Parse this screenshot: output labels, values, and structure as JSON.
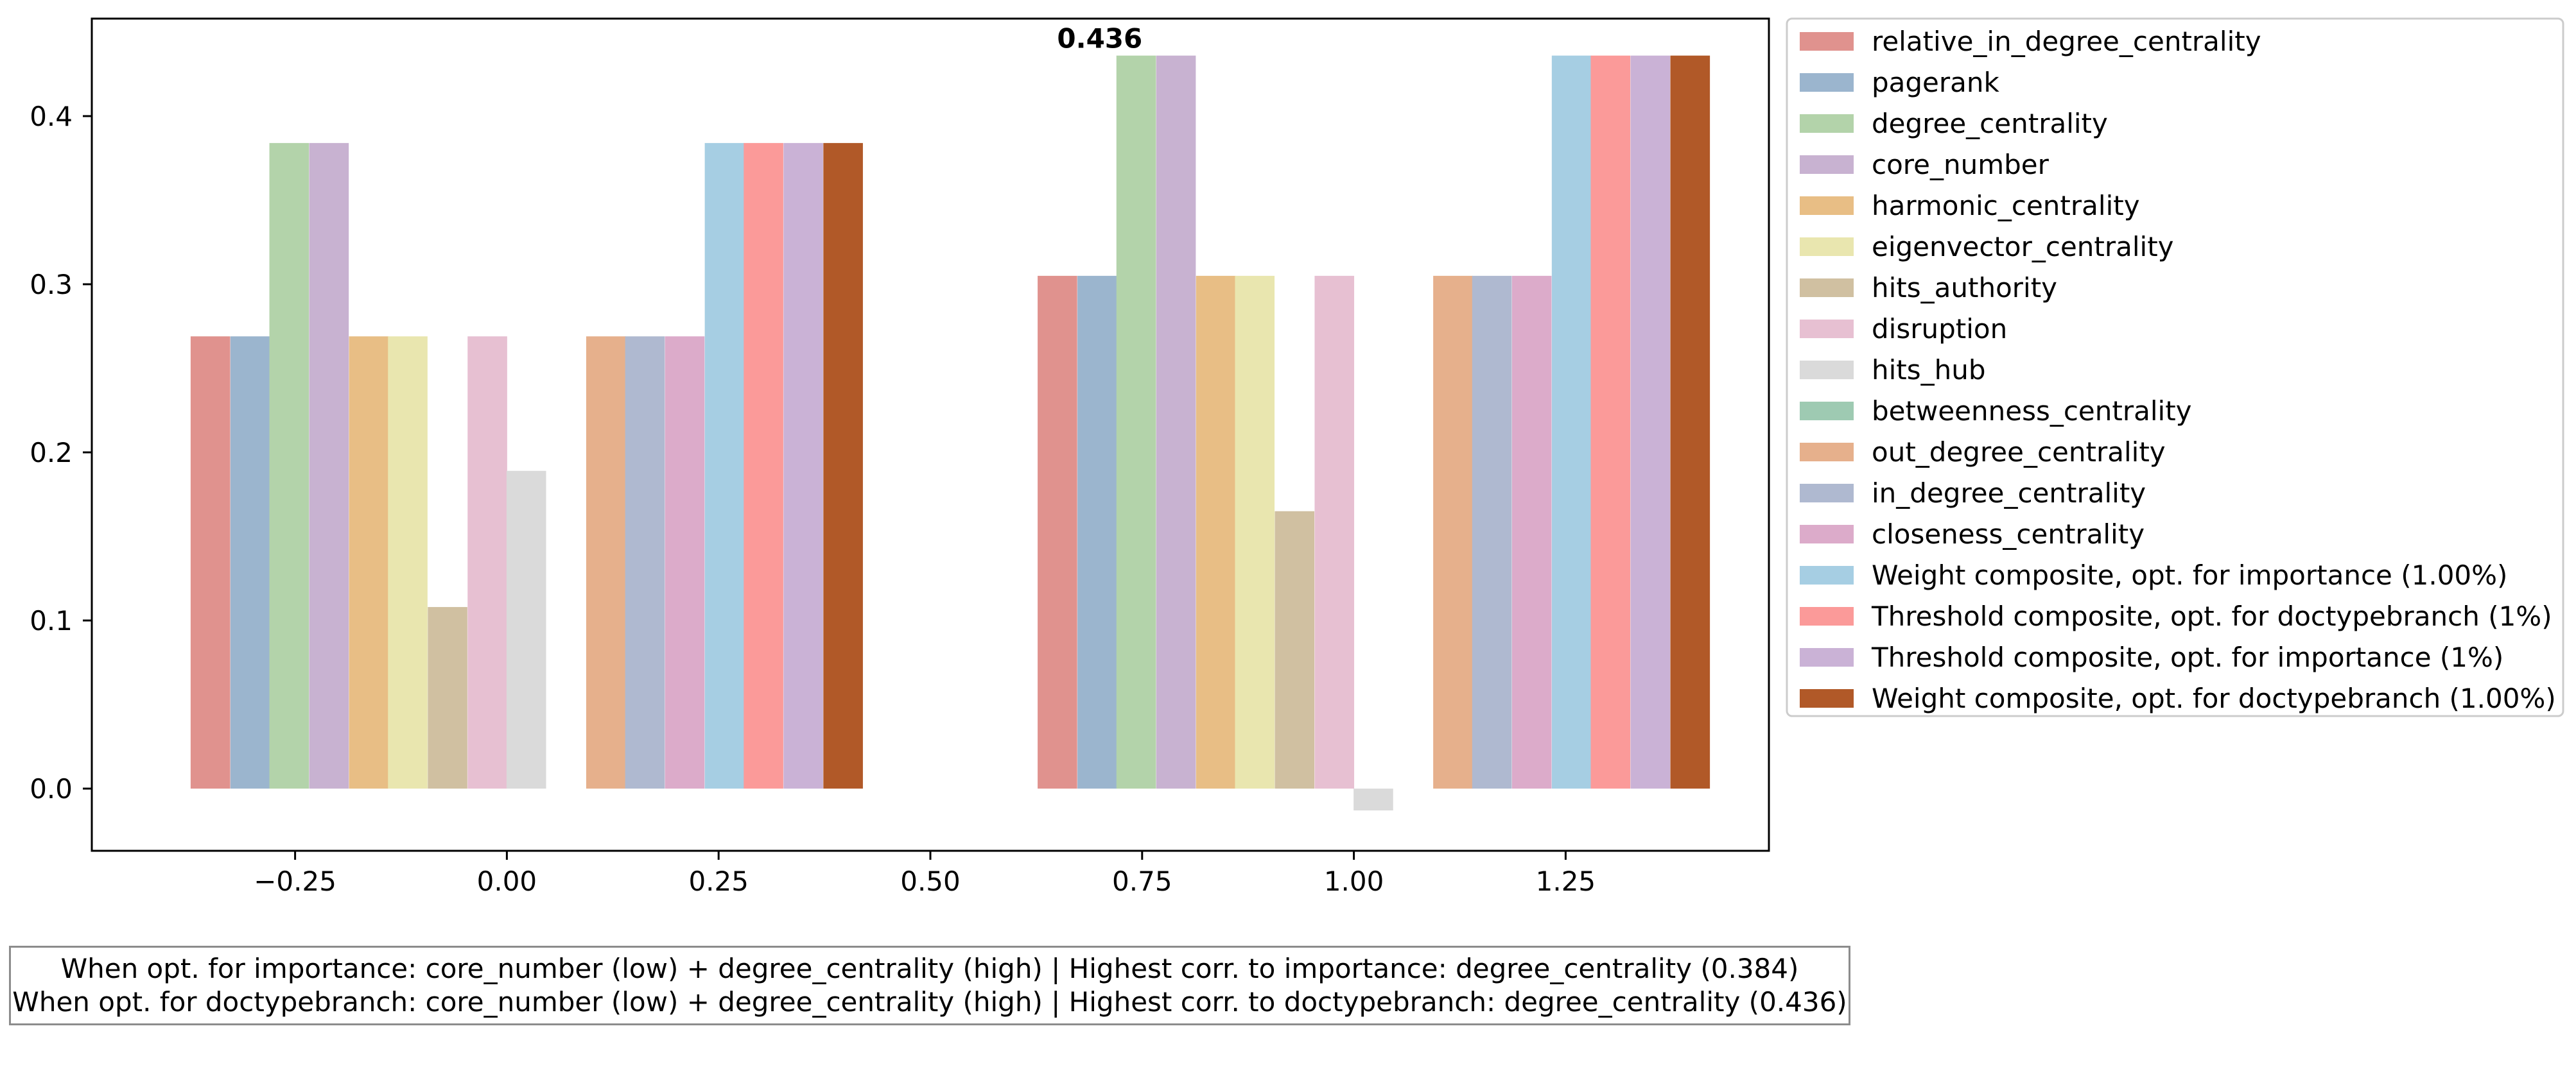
{
  "chart_data": {
    "type": "bar",
    "x_ticks": [
      "−0.25",
      "0.00",
      "0.25",
      "0.50",
      "0.75",
      "1.00",
      "1.25"
    ],
    "x_tick_values": [
      -0.25,
      0,
      0.25,
      0.5,
      0.75,
      1.0,
      1.25
    ],
    "y_ticks": [
      "0.0",
      "0.1",
      "0.2",
      "0.3",
      "0.4"
    ],
    "y_tick_values": [
      0,
      0.1,
      0.2,
      0.3,
      0.4
    ],
    "xlim": [
      -0.49,
      1.49
    ],
    "ylim": [
      -0.037,
      0.458
    ],
    "bar_width": 0.0467,
    "grid": false,
    "legend_position": "outside-right",
    "annotation": {
      "text": "0.436",
      "x": 0.7,
      "y": 0.436
    },
    "series": [
      {
        "name": "relative_in_degree_centrality",
        "color": "#E0928E",
        "points": [
          {
            "x": -0.35,
            "y": 0.269
          },
          {
            "x": 0.65,
            "y": 0.305
          }
        ]
      },
      {
        "name": "pagerank",
        "color": "#9BB5CE",
        "points": [
          {
            "x": -0.303,
            "y": 0.269
          },
          {
            "x": 0.697,
            "y": 0.305
          }
        ]
      },
      {
        "name": "degree_centrality",
        "color": "#B3D3AA",
        "points": [
          {
            "x": -0.257,
            "y": 0.384
          },
          {
            "x": 0.743,
            "y": 0.436
          }
        ]
      },
      {
        "name": "core_number",
        "color": "#C8B2D1",
        "points": [
          {
            "x": -0.21,
            "y": 0.384
          },
          {
            "x": 0.79,
            "y": 0.436
          }
        ]
      },
      {
        "name": "harmonic_centrality",
        "color": "#E8BE85",
        "points": [
          {
            "x": -0.163,
            "y": 0.269
          },
          {
            "x": 0.837,
            "y": 0.305
          }
        ]
      },
      {
        "name": "eigenvector_centrality",
        "color": "#E9E6AF",
        "points": [
          {
            "x": -0.117,
            "y": 0.269
          },
          {
            "x": 0.883,
            "y": 0.305
          }
        ]
      },
      {
        "name": "hits_authority",
        "color": "#D0C0A1",
        "points": [
          {
            "x": -0.07,
            "y": 0.108
          },
          {
            "x": 0.93,
            "y": 0.165
          }
        ]
      },
      {
        "name": "disruption",
        "color": "#E7C0D2",
        "points": [
          {
            "x": -0.023,
            "y": 0.269
          },
          {
            "x": 0.977,
            "y": 0.305
          }
        ]
      },
      {
        "name": "hits_hub",
        "color": "#DADADA",
        "points": [
          {
            "x": 0.023,
            "y": 0.189
          },
          {
            "x": 1.023,
            "y": -0.013
          }
        ]
      },
      {
        "name": "betweenness_centrality",
        "color": "#9ECAB2",
        "points": []
      },
      {
        "name": "out_degree_centrality",
        "color": "#E6B08C",
        "points": [
          {
            "x": 0.117,
            "y": 0.269
          },
          {
            "x": 1.117,
            "y": 0.305
          }
        ]
      },
      {
        "name": "in_degree_centrality",
        "color": "#AFB9D0",
        "points": [
          {
            "x": 0.163,
            "y": 0.269
          },
          {
            "x": 1.163,
            "y": 0.305
          }
        ]
      },
      {
        "name": "closeness_centrality",
        "color": "#DCABCA",
        "points": [
          {
            "x": 0.21,
            "y": 0.269
          },
          {
            "x": 1.21,
            "y": 0.305
          }
        ]
      },
      {
        "name": "Weight composite, opt. for importance (1.00%)",
        "color": "#A6CEE3",
        "points": [
          {
            "x": 0.257,
            "y": 0.384
          },
          {
            "x": 1.257,
            "y": 0.436
          }
        ]
      },
      {
        "name": "Threshold composite, opt. for doctypebranch (1%)",
        "color": "#FB9A99",
        "points": [
          {
            "x": 0.303,
            "y": 0.384
          },
          {
            "x": 1.303,
            "y": 0.436
          }
        ]
      },
      {
        "name": "Threshold composite, opt. for importance (1%)",
        "color": "#CAB2D6",
        "points": [
          {
            "x": 0.35,
            "y": 0.384
          },
          {
            "x": 1.35,
            "y": 0.436
          }
        ]
      },
      {
        "name": "Weight composite, opt. for doctypebranch (1.00%)",
        "color": "#B15928",
        "points": [
          {
            "x": 0.397,
            "y": 0.384
          },
          {
            "x": 1.397,
            "y": 0.436
          }
        ]
      }
    ]
  },
  "caption": {
    "line1": "When opt. for importance: core_number (low) + degree_centrality (high) | Highest corr. to importance: degree_centrality (0.384)",
    "line2": "When opt. for doctypebranch: core_number (low) + degree_centrality (high) | Highest corr. to doctypebranch: degree_centrality (0.436)"
  }
}
